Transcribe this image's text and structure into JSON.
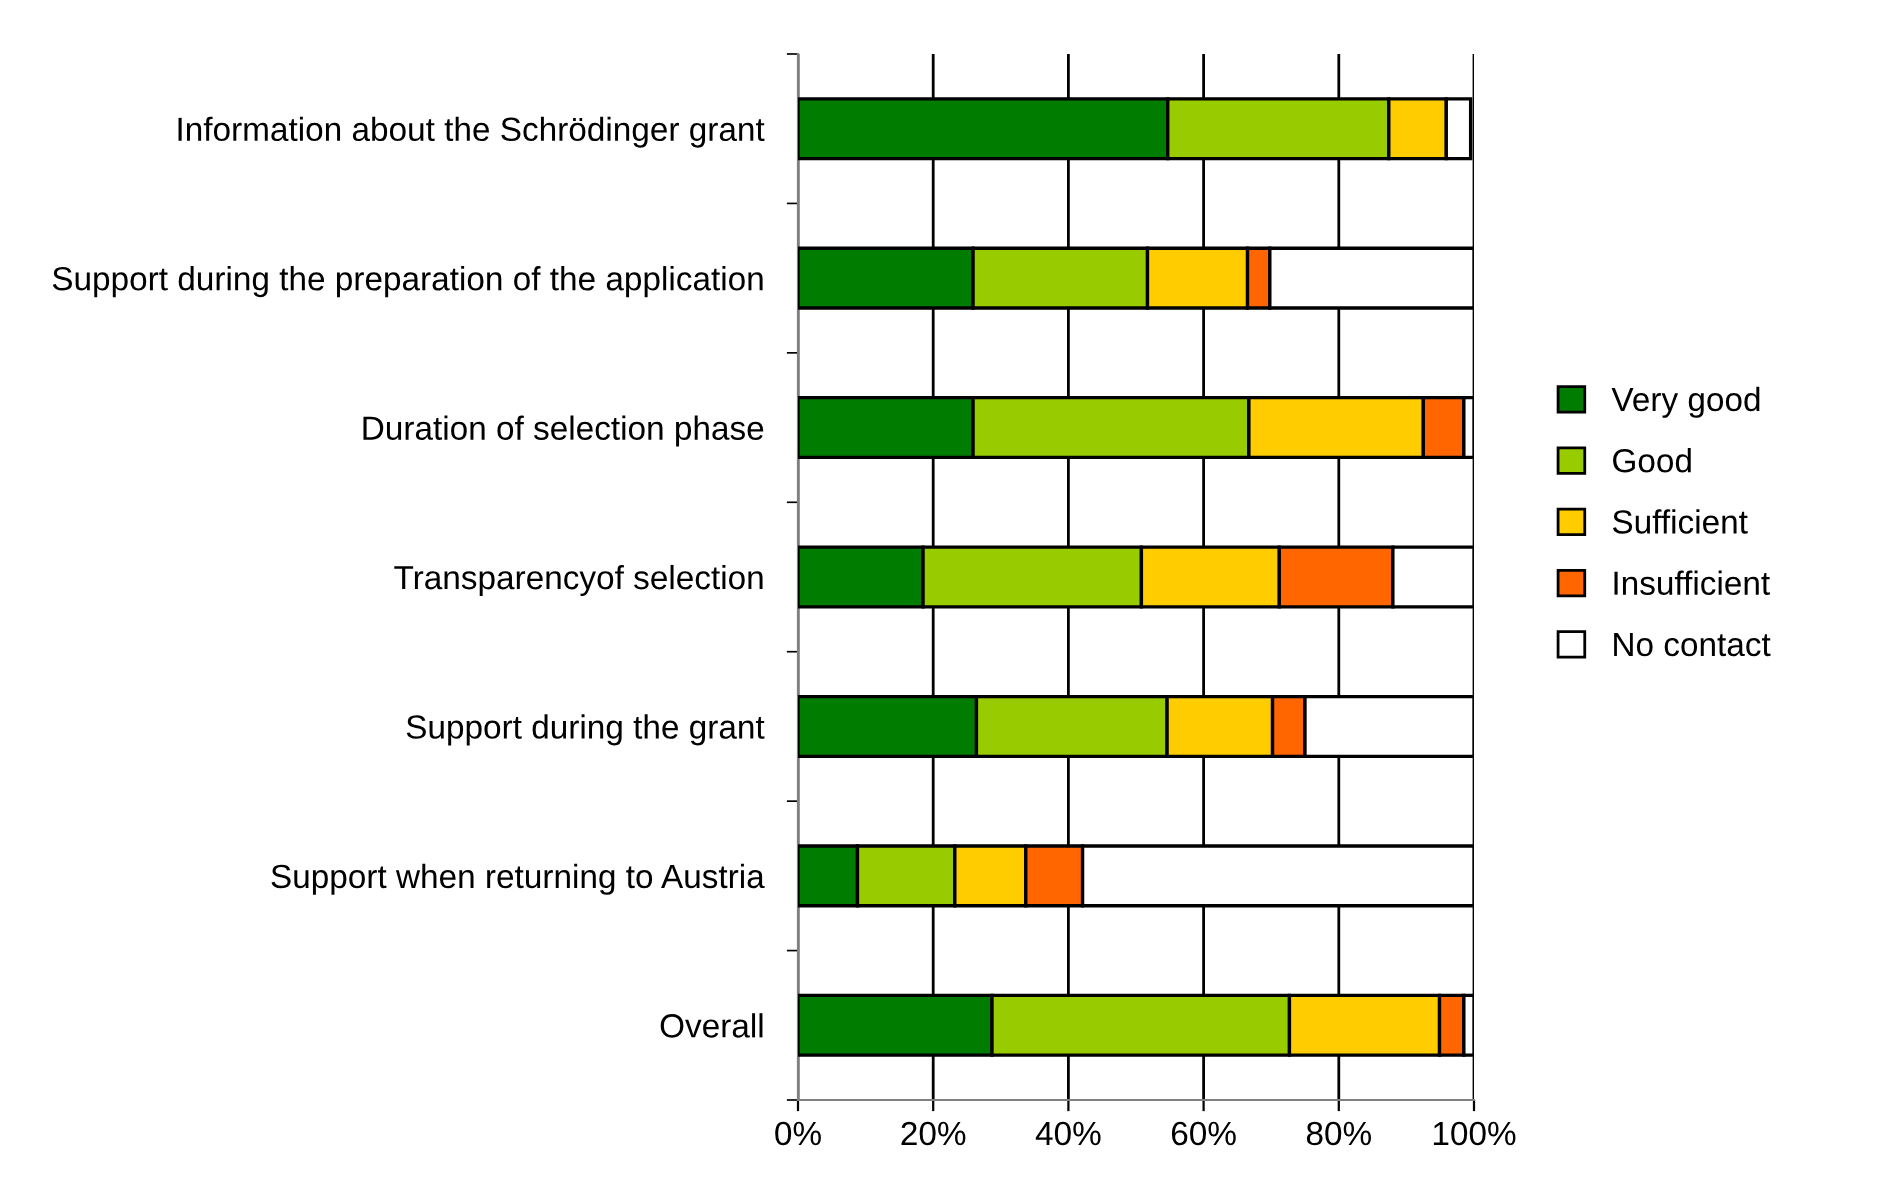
{
  "chart_data": {
    "type": "bar",
    "orientation": "horizontal",
    "stacked": true,
    "categories": [
      "Information about the Schrödinger grant",
      "Support during the preparation of the application",
      "Duration of selection phase",
      "Transparencyof selection",
      "Support during the grant",
      "Support when returning to Austria",
      "Overall"
    ],
    "series": [
      {
        "name": "Very good",
        "color": "#007c00",
        "values": [
          54.7,
          25.9,
          25.9,
          18.5,
          26.4,
          8.8,
          28.7
        ]
      },
      {
        "name": "Good",
        "color": "#99cc00",
        "values": [
          32.7,
          25.8,
          40.8,
          32.3,
          28.2,
          14.4,
          44.0
        ]
      },
      {
        "name": "Sufficient",
        "color": "#ffcc00",
        "values": [
          8.5,
          14.8,
          25.8,
          20.4,
          15.6,
          10.5,
          22.2
        ]
      },
      {
        "name": "Insufficient",
        "color": "#ff6600",
        "values": [
          null,
          3.3,
          6.0,
          16.8,
          4.8,
          8.4,
          3.6
        ]
      },
      {
        "name": "No contact",
        "color": "#ffffff",
        "values": [
          3.6,
          30.2,
          1.5,
          12.0,
          25.0,
          57.9,
          1.5
        ]
      }
    ],
    "xlim": [
      0,
      100
    ],
    "xticks": [
      {
        "value": 0,
        "label": "0%"
      },
      {
        "value": 20,
        "label": "20%"
      },
      {
        "value": 40,
        "label": "40%"
      },
      {
        "value": 60,
        "label": "60%"
      },
      {
        "value": 80,
        "label": "80%"
      },
      {
        "value": 100,
        "label": "100%"
      }
    ],
    "grid": "x",
    "legend": "right"
  }
}
